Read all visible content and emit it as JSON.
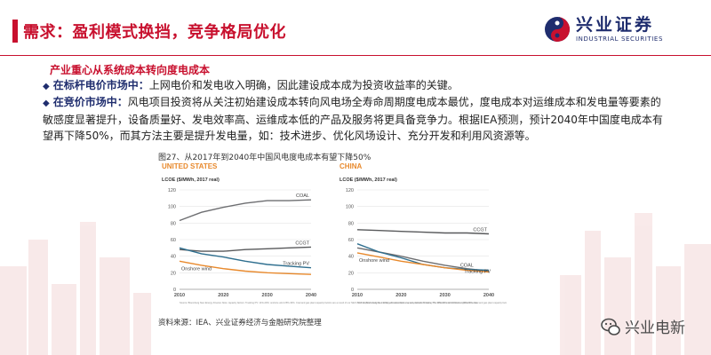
{
  "header": {
    "title": "需求：盈利模式换挡，竞争格局优化",
    "logo": {
      "name_cn": "兴业证券",
      "name_en": "INDUSTRIAL SECURITIES"
    }
  },
  "body": {
    "subheading": "产业重心从系统成本转向度电成本",
    "bullets": [
      {
        "lead": "在标杆电价市场中：",
        "text": "上网电价和发电收入明确，因此建设成本成为投资收益率的关键。"
      },
      {
        "lead": "在竞价市场中：",
        "text": "风电项目投资将从关注初始建设成本转向风电场全寿命周期度电成本最优，度电成本对运维成本和发电量等要素的敏感度显著提升，设备质量好、发电效率高、运维成本低的产品及服务将更具备竞争力。根据IEA预测，预计2040年中国度电成本有望再下降50%，而其方法主要是提升发电量，如：技术进步、优化风场设计、充分开发和利用风资源等。"
      }
    ]
  },
  "figure": {
    "caption": "图27、从2017年到2040年中国风电度电成本有望下降50%",
    "source": "资料来源：IEA、兴业证券经济与金融研究院整理"
  },
  "watermark": {
    "text": "兴业电新"
  },
  "chart_data": [
    {
      "type": "line",
      "title": "UNITED STATES",
      "ylabel": "LCOE ($/MWh, 2017 real)",
      "x": [
        2010,
        2015,
        2020,
        2025,
        2030,
        2035,
        2040
      ],
      "ylim": [
        0,
        120
      ],
      "yticks": [
        0,
        20,
        40,
        60,
        80,
        100,
        120
      ],
      "series": [
        {
          "name": "COAL",
          "color": "#6d6e71",
          "values": [
            83,
            93,
            99,
            104,
            107,
            107,
            108
          ]
        },
        {
          "name": "CCGT",
          "color": "#58595b",
          "values": [
            48,
            46,
            46,
            48,
            49,
            50,
            51
          ]
        },
        {
          "name": "Tracking PV",
          "color": "#2f6f8f",
          "values": [
            50,
            43,
            39,
            34,
            30,
            28,
            26
          ]
        },
        {
          "name": "Onshore wind",
          "color": "#e8892c",
          "values": [
            34,
            29,
            25,
            22,
            20,
            19,
            18
          ]
        }
      ],
      "footnote": "Source: Bloomberg New Energy Finance Note: capacity factors: Tracking PV: 14%-20%; onshore wind 25%-33%. Coal and gas plant capacity factors are a result of our NEO 2017 dispatch analysis. LCOEs are calculated on a non-subsidized basis. The different solid LCOE is a global forecast."
    },
    {
      "type": "line",
      "title": "CHINA",
      "ylabel": "LCOE ($/MWh, 2017 real)",
      "x": [
        2010,
        2015,
        2020,
        2025,
        2030,
        2035,
        2040
      ],
      "ylim": [
        0,
        120
      ],
      "yticks": [
        0,
        20,
        40,
        60,
        80,
        100,
        120
      ],
      "series": [
        {
          "name": "CCGT",
          "color": "#58595b",
          "values": [
            72,
            71,
            70,
            69,
            68,
            68,
            67
          ]
        },
        {
          "name": "COAL",
          "color": "#6d6e71",
          "values": [
            50,
            45,
            40,
            34,
            29,
            25,
            22
          ]
        },
        {
          "name": "Tracking PV",
          "color": "#2f6f8f",
          "values": [
            55,
            45,
            38,
            30,
            26,
            24,
            23
          ]
        },
        {
          "name": "Onshore wind",
          "color": "#e8892c",
          "values": [
            44,
            39,
            34,
            30,
            26,
            23,
            21
          ]
        }
      ],
      "footnote": "Source: Bloomberg New Energy Finance Note: capacity factors: Tracking PV: 13%-20%; onshore wind 20%-32%. Coal and gas plant capacity factors are a result of our NEO 2017 dispatch analysis. LCOEs are calculated on a non-subsidized basis. The LCOE for thermal plants in China includes the carbon price. The different solid LCOE is a global forecast."
    }
  ]
}
